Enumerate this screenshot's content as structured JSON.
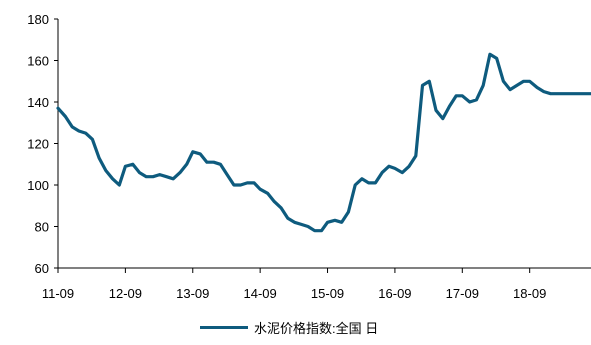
{
  "chart_data": {
    "type": "line",
    "title": "",
    "xlabel": "",
    "ylabel": "",
    "x_tick_labels": [
      "11-09",
      "12-09",
      "13-09",
      "14-09",
      "15-09",
      "16-09",
      "17-09",
      "18-09"
    ],
    "y_tick_labels": [
      "60",
      "80",
      "100",
      "120",
      "140",
      "160",
      "180"
    ],
    "ylim": [
      60,
      180
    ],
    "grid": false,
    "legend_position": "bottom",
    "series": [
      {
        "name": "水泥价格指数:全国 日",
        "color": "#0e5b7e",
        "x": [
          2011.69,
          2011.8,
          2011.9,
          2012.0,
          2012.1,
          2012.2,
          2012.3,
          2012.4,
          2012.5,
          2012.6,
          2012.69,
          2012.8,
          2012.9,
          2013.0,
          2013.1,
          2013.2,
          2013.3,
          2013.4,
          2013.5,
          2013.6,
          2013.69,
          2013.8,
          2013.9,
          2014.0,
          2014.1,
          2014.2,
          2014.3,
          2014.4,
          2014.5,
          2014.6,
          2014.69,
          2014.8,
          2014.9,
          2015.0,
          2015.1,
          2015.2,
          2015.3,
          2015.4,
          2015.5,
          2015.6,
          2015.69,
          2015.8,
          2015.9,
          2016.0,
          2016.1,
          2016.2,
          2016.3,
          2016.4,
          2016.5,
          2016.6,
          2016.69,
          2016.8,
          2016.9,
          2017.0,
          2017.1,
          2017.2,
          2017.3,
          2017.4,
          2017.5,
          2017.6,
          2017.69,
          2017.8,
          2017.9,
          2018.0,
          2018.1,
          2018.2,
          2018.3,
          2018.4,
          2018.5,
          2018.6,
          2018.69,
          2018.8,
          2018.9,
          2019.0,
          2019.1,
          2019.2,
          2019.3,
          2019.4,
          2019.5,
          2019.6
        ],
        "values": [
          137,
          133,
          128,
          126,
          125,
          122,
          113,
          107,
          103,
          100,
          109,
          110,
          106,
          104,
          104,
          105,
          104,
          103,
          106,
          110,
          116,
          115,
          111,
          111,
          110,
          105,
          100,
          100,
          101,
          101,
          98,
          96,
          92,
          89,
          84,
          82,
          81,
          80,
          78,
          78,
          82,
          83,
          82,
          87,
          100,
          103,
          101,
          101,
          106,
          109,
          108,
          106,
          109,
          114,
          148,
          150,
          136,
          132,
          138,
          143,
          143,
          140,
          141,
          148,
          163,
          161,
          150,
          146,
          148,
          150,
          150,
          147,
          145,
          144,
          144,
          144,
          144,
          144,
          144,
          144
        ]
      }
    ]
  }
}
